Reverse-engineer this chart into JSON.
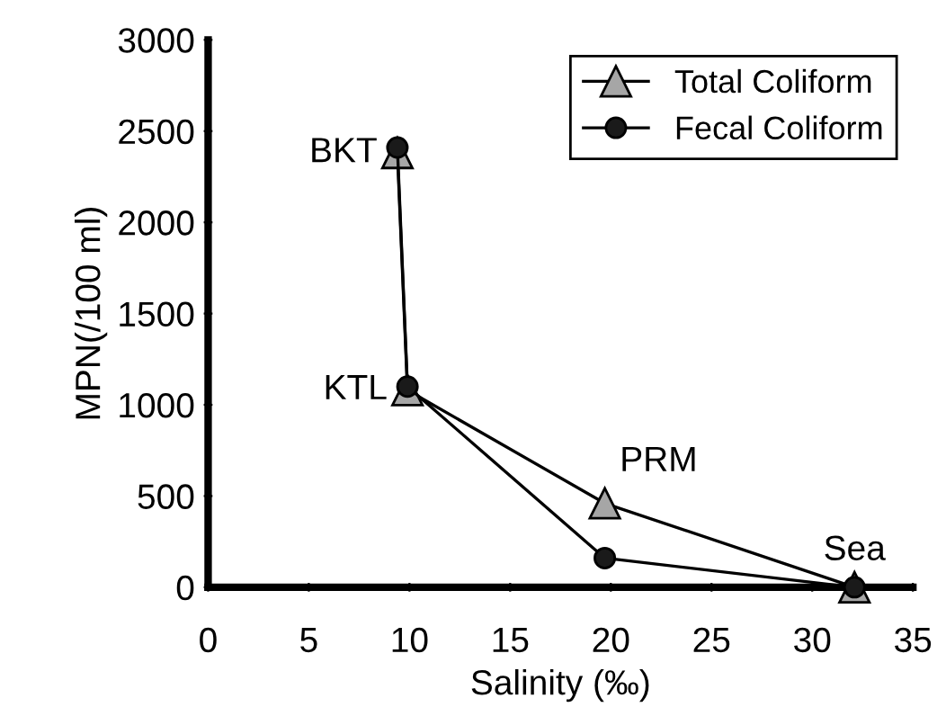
{
  "chart_data": {
    "type": "line",
    "xlabel": "Salinity (‰)",
    "ylabel": "MPN(/100 ml)",
    "x": [
      9.4,
      9.9,
      19.7,
      32.1
    ],
    "series": [
      {
        "name": "Total Coliform",
        "color": "#a6a6a6",
        "marker": "triangle",
        "values": [
          2380,
          1080,
          460,
          0
        ]
      },
      {
        "name": "Fecal Coliform",
        "color": "#1a1a1a",
        "marker": "circle",
        "values": [
          2410,
          1100,
          160,
          0
        ]
      }
    ],
    "xlim": [
      0,
      35
    ],
    "xticks": [
      0,
      5,
      10,
      15,
      20,
      25,
      30,
      35
    ],
    "ylim": [
      0,
      3000
    ],
    "yticks": [
      0,
      500,
      1000,
      1500,
      2000,
      2500,
      3000
    ],
    "grid": false,
    "legend": "top right",
    "annotations": [
      {
        "text": "BKT",
        "x": 9.4,
        "y": 2380
      },
      {
        "text": "KTL",
        "x": 9.9,
        "y": 1080
      },
      {
        "text": "PRM",
        "x": 19.7,
        "y": 460
      },
      {
        "text": "Sea",
        "x": 32.1,
        "y": 0
      }
    ]
  }
}
